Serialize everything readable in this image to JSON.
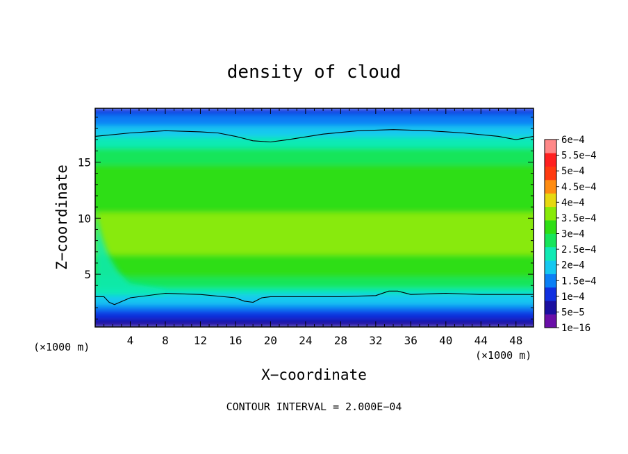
{
  "chart_data": {
    "type": "heatmap",
    "title": "density of cloud",
    "xlabel": "X−coordinate",
    "ylabel": "Z−coordinate",
    "x_unit_label": "(×1000 m)",
    "x_unit_label_left": "(×1000 m)",
    "xlim": [
      0,
      50
    ],
    "ylim": [
      0.3,
      19.8
    ],
    "x_ticks": [
      4,
      8,
      12,
      16,
      20,
      24,
      28,
      32,
      36,
      40,
      44,
      48
    ],
    "y_ticks": [
      5,
      10,
      15
    ],
    "contour_interval_text": "CONTOUR INTERVAL = 2.000E−04",
    "contour_interval": 0.0002,
    "colorbar": {
      "levels": [
        1e-16,
        5e-05,
        0.0001,
        0.00015,
        0.0002,
        0.00025,
        0.0003,
        0.00035,
        0.0004,
        0.00045,
        0.0005,
        0.00055,
        0.0006
      ],
      "labels": [
        "1e−16",
        "5e−5",
        "1e−4",
        "1.5e−4",
        "2e−4",
        "2.5e−4",
        "3e−4",
        "3.5e−4",
        "4e−4",
        "4.5e−4",
        "5e−4",
        "5.5e−4",
        "6e−4"
      ],
      "colors": [
        "#6a0fa8",
        "#1a0fa0",
        "#1030e0",
        "#0a7ff5",
        "#14c8f0",
        "#10eab4",
        "#16e55a",
        "#2ede14",
        "#88ea08",
        "#e6d810",
        "#ff8c10",
        "#ff3a10",
        "#ff2020",
        "#ff8888"
      ]
    },
    "field_profile": {
      "z": [
        0.4,
        1.1,
        2.0,
        3.0,
        4.0,
        5.0,
        6.0,
        7.0,
        8.5,
        10.0,
        11.5,
        13.0,
        14.5,
        16.0,
        17.2,
        18.2,
        19.0,
        19.8
      ],
      "density": [
        1e-05,
        4.5e-05,
        0.000125,
        0.000185,
        0.00026,
        0.00031,
        0.000335,
        0.000355,
        0.000365,
        0.000355,
        0.00034,
        0.00033,
        0.00031,
        0.00027,
        0.0002,
        0.00015,
        0.00011,
        8e-05
      ]
    },
    "contours_2e-4": [
      {
        "x": [
          0,
          1,
          1.6,
          2.2,
          4,
          8,
          12,
          16,
          17,
          18,
          19,
          20,
          24,
          28,
          32,
          33.5,
          34.5,
          36,
          40,
          44,
          48,
          50
        ],
        "z": [
          3.0,
          3.0,
          2.5,
          2.3,
          2.9,
          3.3,
          3.2,
          2.9,
          2.6,
          2.5,
          2.9,
          3.0,
          3.0,
          3.0,
          3.1,
          3.5,
          3.5,
          3.2,
          3.3,
          3.2,
          3.2,
          3.2
        ]
      },
      {
        "x": [
          0,
          4,
          8,
          12,
          14,
          16,
          18,
          20,
          22,
          26,
          30,
          34,
          38,
          42,
          46,
          48,
          50
        ],
        "z": [
          17.3,
          17.6,
          17.8,
          17.7,
          17.6,
          17.3,
          16.9,
          16.8,
          17.0,
          17.5,
          17.8,
          17.9,
          17.8,
          17.6,
          17.3,
          17.0,
          17.3
        ]
      }
    ]
  }
}
